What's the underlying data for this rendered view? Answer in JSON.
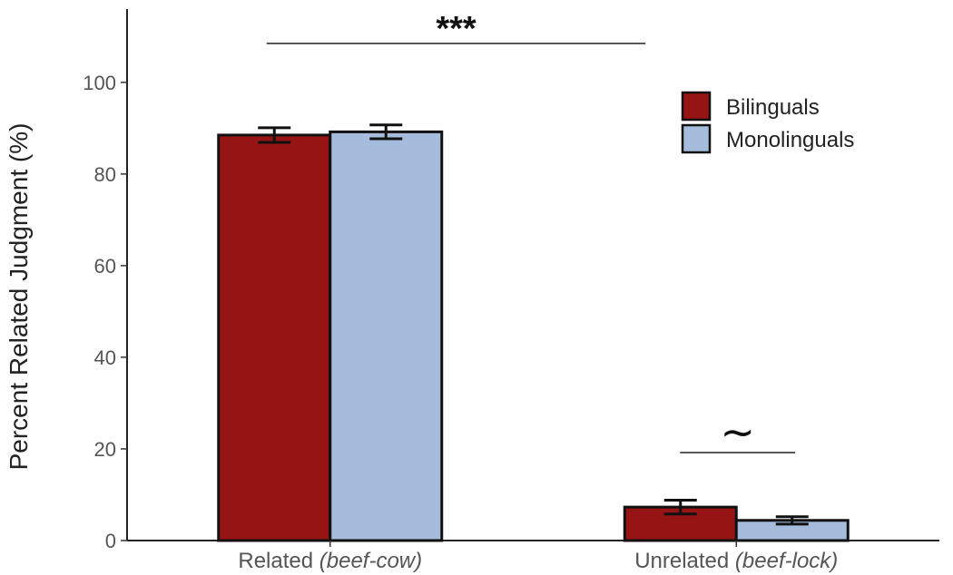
{
  "chart_data": {
    "type": "bar",
    "ylabel": "Percent Related Judgment (%)",
    "xlabel": "",
    "ylim": [
      0,
      116
    ],
    "yticks": [
      0,
      20,
      40,
      60,
      80,
      100
    ],
    "grid": false,
    "legend_position": "top-right",
    "categories": [
      {
        "main": "Related ",
        "italic": "(beef-cow)"
      },
      {
        "main": "Unrelated ",
        "italic": "(beef-lock)"
      }
    ],
    "series": [
      {
        "name": "Bilinguals",
        "color": "#961414",
        "values": [
          88.5,
          7.3
        ],
        "errors": [
          1.6,
          1.5
        ]
      },
      {
        "name": "Monolinguals",
        "color": "#A6BCDD",
        "values": [
          89.2,
          4.4
        ],
        "errors": [
          1.5,
          0.8
        ]
      }
    ],
    "annotations": [
      {
        "label": "***",
        "kind": "stars",
        "y": 108.5,
        "from_category": 0,
        "to_category": 1
      },
      {
        "label": "~",
        "kind": "tilde",
        "y": 19.2,
        "category": 1
      }
    ]
  }
}
